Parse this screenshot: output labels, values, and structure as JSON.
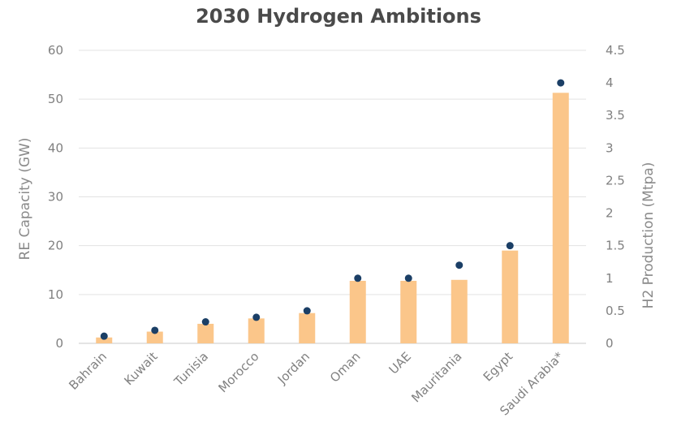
{
  "chart_data": {
    "type": "bar",
    "title": "2030 Hydrogen Ambitions",
    "categories": [
      "Bahrain",
      "Kuwait",
      "Tunisia",
      "Morocco",
      "Jordan",
      "Oman",
      "UAE",
      "Mauritania",
      "Egypt",
      "Saudi Arabia*"
    ],
    "series": [
      {
        "name": "RE Capacity (GW)",
        "type": "bar",
        "axis": "left",
        "color": "#fbc68a",
        "values": [
          1.2,
          2.4,
          4.0,
          5.1,
          6.2,
          12.8,
          12.8,
          13.0,
          19.0,
          51.3
        ]
      },
      {
        "name": "H2 Production (Mtpa)",
        "type": "scatter",
        "axis": "right",
        "color": "#1b3f66",
        "values": [
          0.11,
          0.2,
          0.33,
          0.4,
          0.5,
          1.0,
          1.0,
          1.2,
          1.5,
          4.0
        ]
      }
    ],
    "ylabel": "RE Capacity (GW)",
    "y2label": "H2 Production (Mtpa)",
    "ylim": [
      0,
      60
    ],
    "y2lim": [
      0,
      4.5
    ],
    "yticks": [
      "0",
      "10",
      "20",
      "30",
      "40",
      "50",
      "60"
    ],
    "y2ticks": [
      "0",
      "0.5",
      "1",
      "1.5",
      "2",
      "2.5",
      "3",
      "3.5",
      "4",
      "4.5"
    ],
    "grid": true,
    "legend": "none"
  }
}
